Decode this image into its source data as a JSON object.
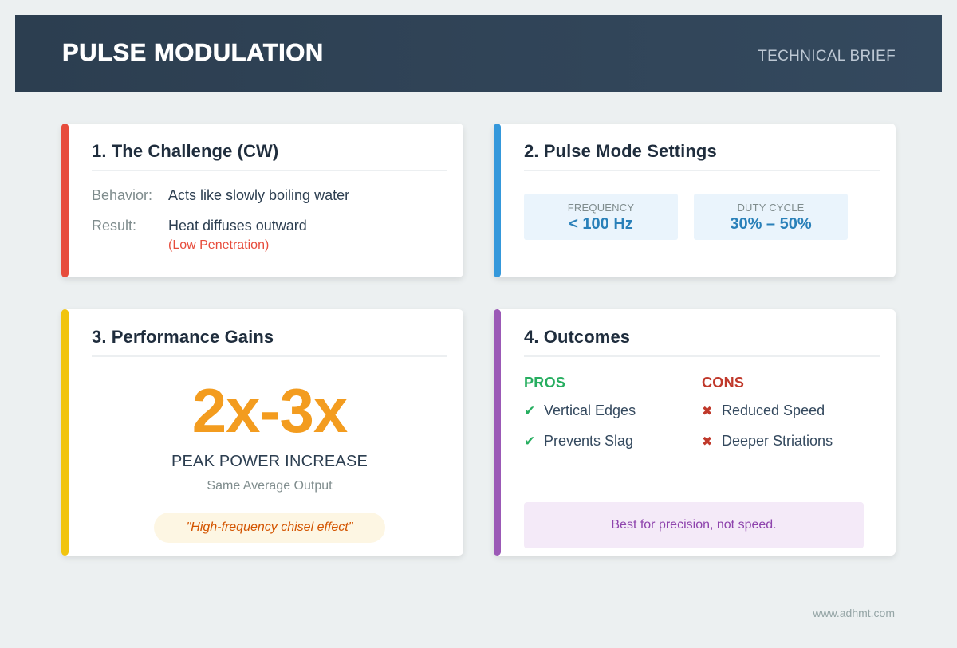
{
  "header": {
    "title": "PULSE MODULATION",
    "subtitle": "TECHNICAL BRIEF"
  },
  "colors": {
    "header_bg": "#2c3e50",
    "challenge_accent": "#e74c3c",
    "settings_accent": "#3498db",
    "performance_accent": "#f1c40f",
    "outcomes_accent": "#9b59b6",
    "big_number": "#f39c1f",
    "pros": "#27ae60",
    "cons": "#c0392b"
  },
  "cards": {
    "challenge": {
      "title": "1. The Challenge (CW)",
      "rows": [
        {
          "label": "Behavior:",
          "value": "Acts like slowly boiling water"
        },
        {
          "label": "Result:",
          "value": "Heat diffuses outward",
          "note": "(Low Penetration)"
        }
      ]
    },
    "settings": {
      "title": "2. Pulse Mode Settings",
      "items": [
        {
          "label": "FREQUENCY",
          "value": "< 100 Hz"
        },
        {
          "label": "DUTY CYCLE",
          "value": "30% – 50%"
        }
      ]
    },
    "performance": {
      "title": "3. Performance Gains",
      "big_number": "2x-3x",
      "label": "PEAK POWER INCREASE",
      "sub": "Same Average Output",
      "quote": "\"High-frequency chisel effect\""
    },
    "outcomes": {
      "title": "4. Outcomes",
      "pros_title": "PROS",
      "cons_title": "CONS",
      "pros": [
        "Vertical Edges",
        "Prevents Slag"
      ],
      "cons": [
        "Reduced Speed",
        "Deeper Striations"
      ],
      "icons": {
        "pro": "✔",
        "con": "✖"
      },
      "note": "Best for precision, not speed."
    }
  },
  "footer": {
    "website": "www.adhmt.com"
  }
}
